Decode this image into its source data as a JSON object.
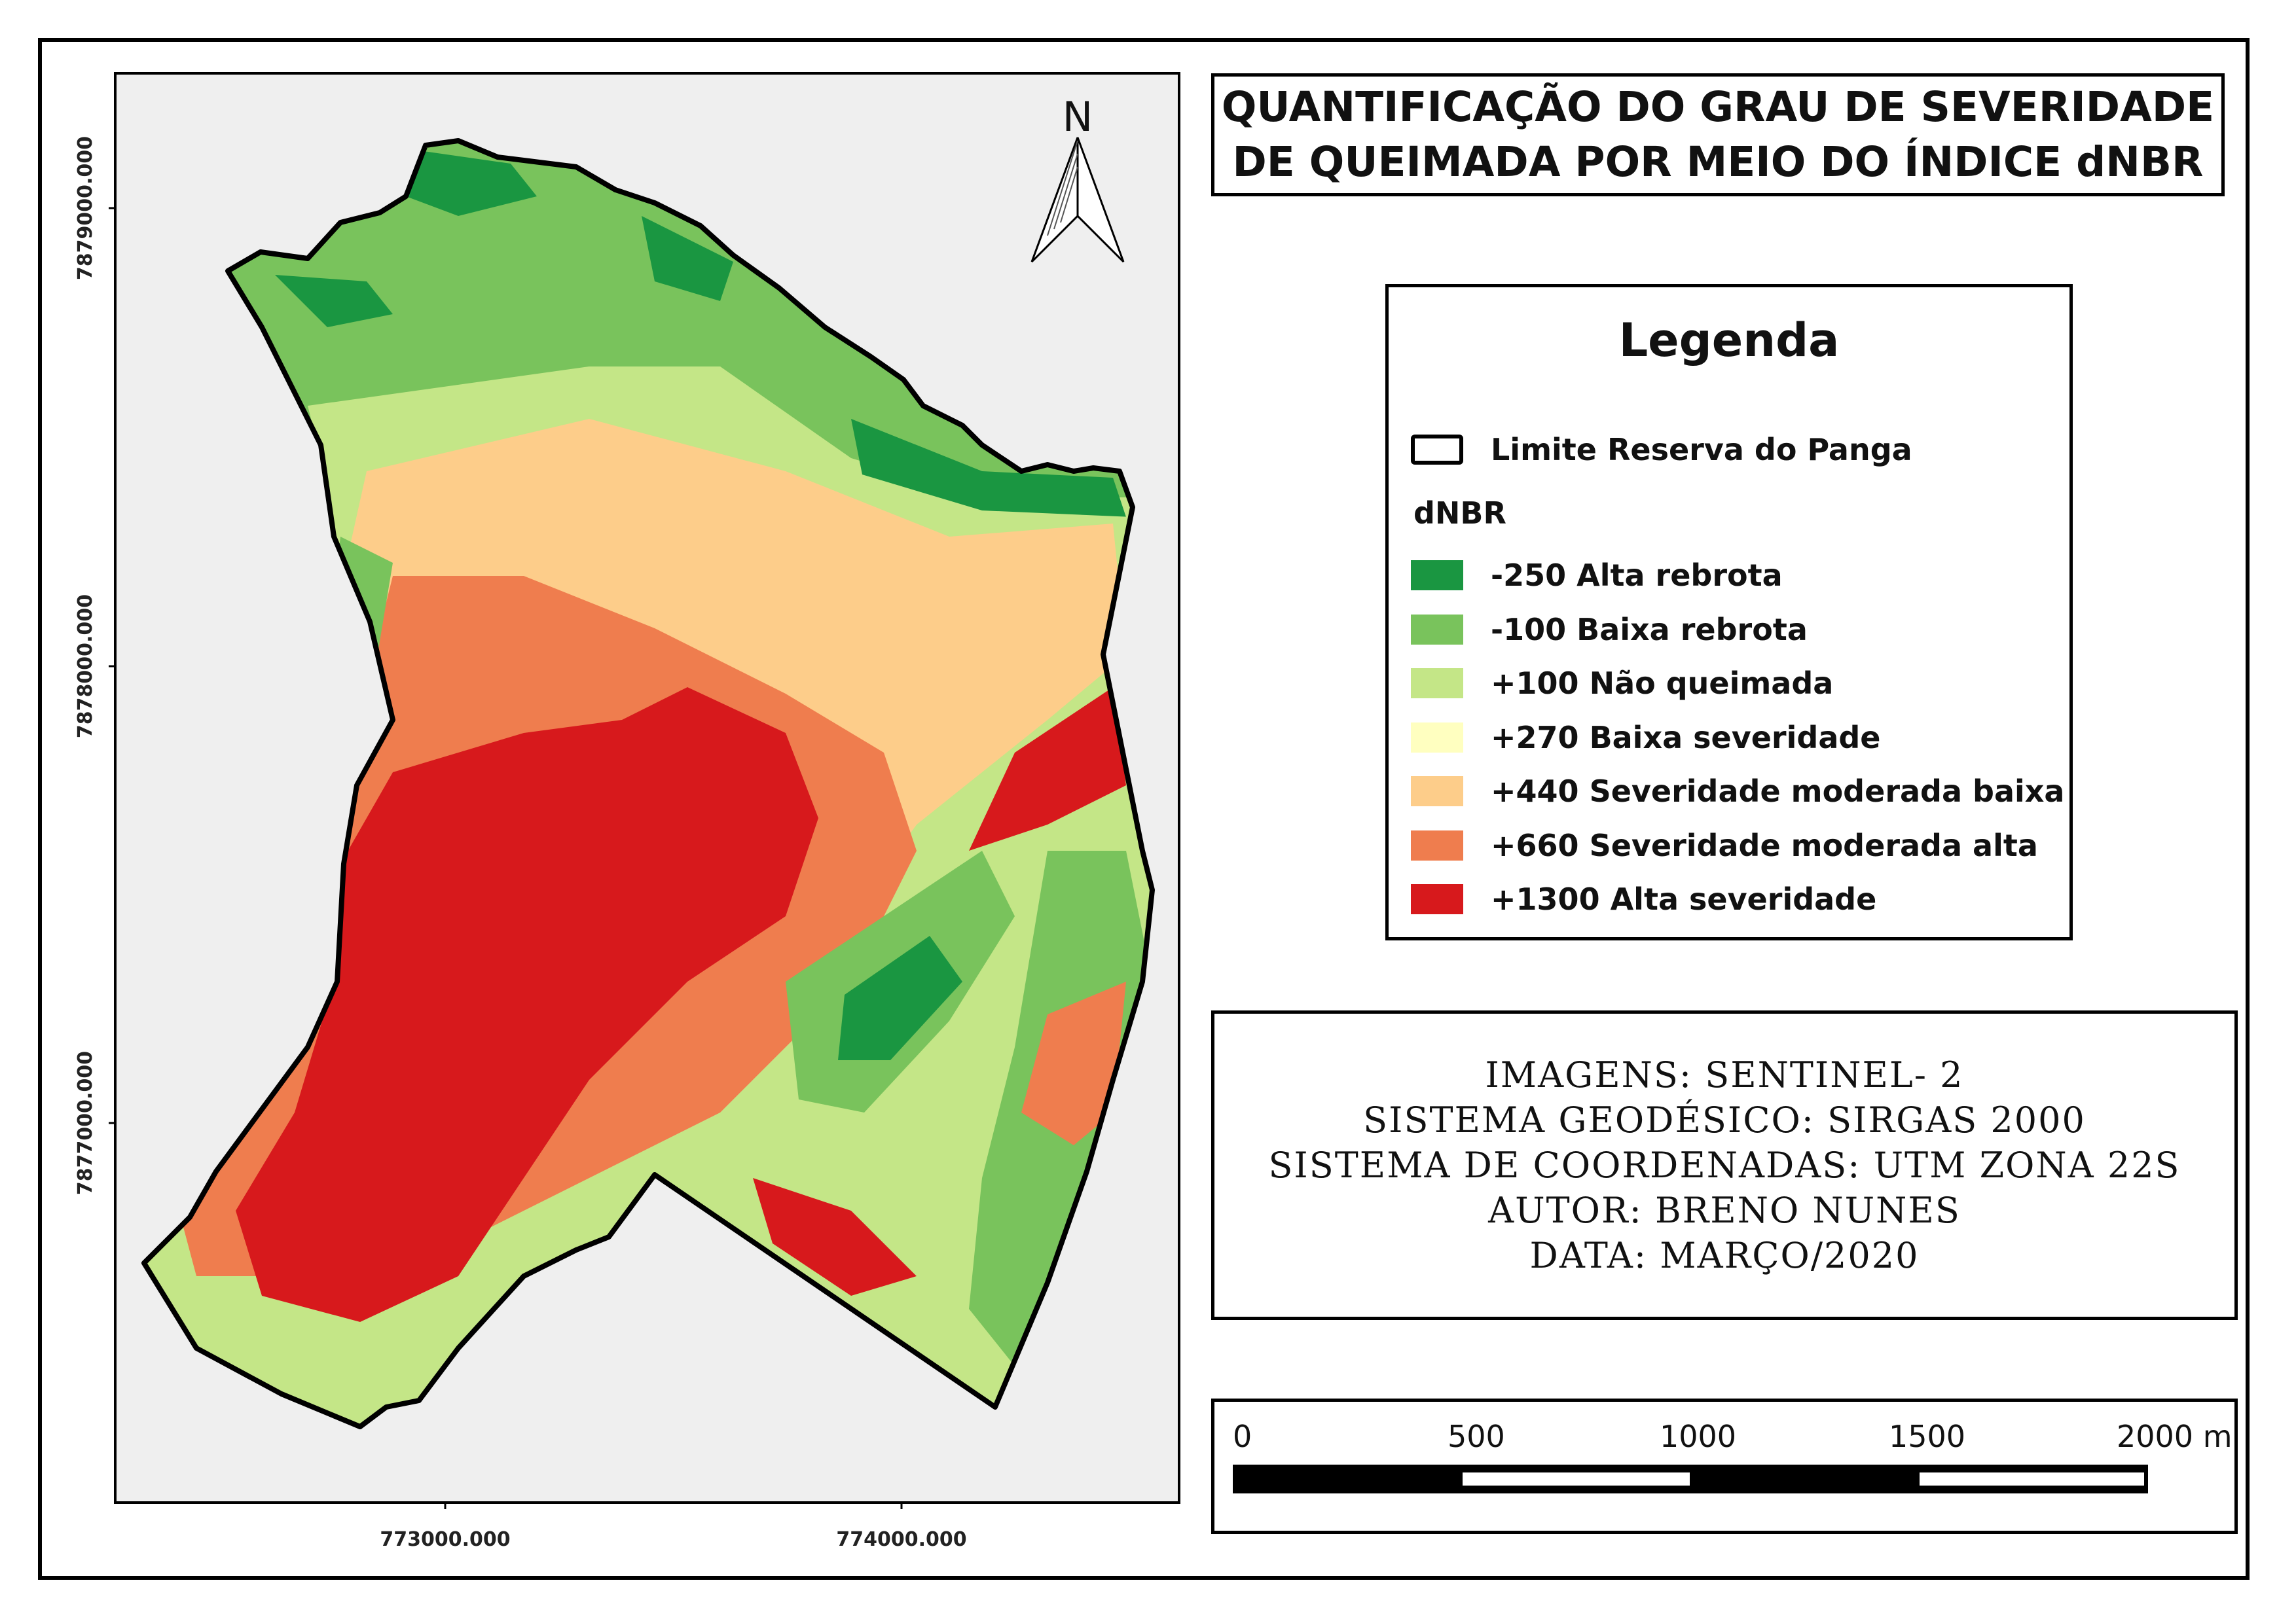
{
  "title": {
    "line1": "QUANTIFICAÇÃO DO GRAU DE SEVERIDADE",
    "line2": "DE QUEIMADA POR MEIO DO ÍNDICE dNBR"
  },
  "north_arrow": {
    "label": "N"
  },
  "axes": {
    "x_ticks": [
      "773000.000",
      "774000.000"
    ],
    "y_ticks": [
      "7879000.000",
      "7878000.000",
      "7877000.000"
    ]
  },
  "legend": {
    "title": "Legenda",
    "boundary_label": "Limite Reserva do Panga",
    "dnbr_header": "dNBR",
    "classes": [
      {
        "label": "-250 Alta rebrota",
        "color": "#1a9641"
      },
      {
        "label": "-100 Baixa rebrota",
        "color": "#79c35c"
      },
      {
        "label": "+100 Não queimada",
        "color": "#c4e687"
      },
      {
        "label": "+270 Baixa severidade",
        "color": "#ffffc0"
      },
      {
        "label": "+440 Severidade moderada baixa",
        "color": "#fdcd8a"
      },
      {
        "label": "+660 Severidade moderada alta",
        "color": "#ef7d4e"
      },
      {
        "label": "+1300 Alta severidade",
        "color": "#d7191c"
      }
    ]
  },
  "info": {
    "images": "IMAGENS: SENTINEL- 2",
    "datum": "SISTEMA GEODÉSICO: SIRGAS 2000",
    "coords": "SISTEMA DE COORDENADAS: UTM ZONA 22S",
    "author": "AUTOR: BRENO NUNES",
    "date": "DATA: MARÇO/2020"
  },
  "scale_bar": {
    "labels": [
      "0",
      "500",
      "1000",
      "1500",
      "2000 m"
    ]
  },
  "colors": {
    "map_background": "#efefef",
    "boundary": "#000000"
  }
}
